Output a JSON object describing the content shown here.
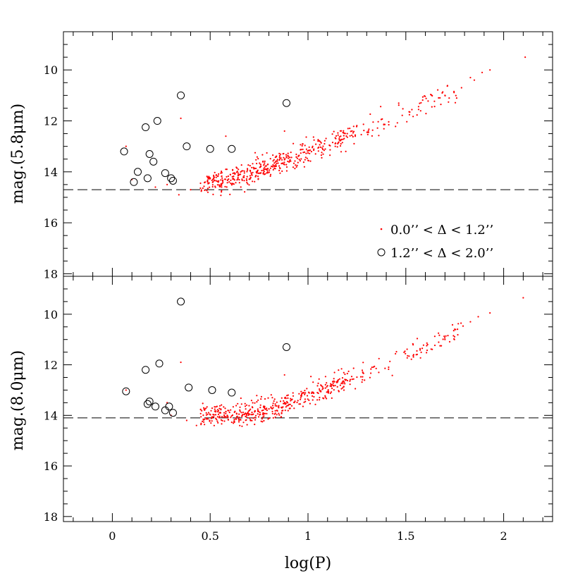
{
  "colors": {
    "axis": "#000000",
    "point": "#ff0000",
    "circle": "#000000",
    "threshold": "#000000"
  },
  "legend": {
    "placement": "lower-right of top panel",
    "entry1": "0.0’’ < Δ < 1.2’’",
    "entry2": "1.2’’ < Δ < 2.0’’"
  },
  "chart_data": [
    {
      "type": "scatter",
      "xlabel": "log(P)",
      "ylabel": "mag.(5.8μm)",
      "xlim": [
        -0.25,
        2.25
      ],
      "ylim": [
        18.1,
        8.5
      ],
      "y_inverted": true,
      "x_ticks": [
        "0",
        "0.5",
        "1",
        "1.5",
        "2"
      ],
      "y_ticks": [
        "10",
        "12",
        "14",
        "16",
        "18"
      ],
      "threshold": 14.7,
      "series": [
        {
          "name": "0.0’’ < Δ < 1.2’’",
          "marker": "dot",
          "trend": {
            "x": [
              0.45,
              0.6,
              0.8,
              1.0,
              1.2,
              1.4,
              1.6,
              1.8,
              2.1
            ],
            "y": [
              14.5,
              14.3,
              13.8,
              13.2,
              12.6,
              12.0,
              11.3,
              10.6,
              9.5
            ]
          },
          "extra_points": [
            {
              "x": 0.35,
              "y": 11.9
            },
            {
              "x": 0.58,
              "y": 12.6
            },
            {
              "x": 0.88,
              "y": 12.4
            },
            {
              "x": 1.7,
              "y": 11.0
            },
            {
              "x": 1.85,
              "y": 10.4
            },
            {
              "x": 1.83,
              "y": 10.3
            },
            {
              "x": 1.89,
              "y": 10.1
            },
            {
              "x": 1.93,
              "y": 10.0
            },
            {
              "x": 2.11,
              "y": 9.5
            },
            {
              "x": 0.07,
              "y": 13.0
            },
            {
              "x": 0.1,
              "y": 14.3
            },
            {
              "x": 0.22,
              "y": 14.6
            },
            {
              "x": 0.28,
              "y": 14.5
            },
            {
              "x": 0.34,
              "y": 14.9
            },
            {
              "x": 0.4,
              "y": 14.7
            }
          ]
        },
        {
          "name": "1.2’’ < Δ < 2.0’’",
          "marker": "circle",
          "points": [
            {
              "x": 0.06,
              "y": 13.2
            },
            {
              "x": 0.13,
              "y": 14.0
            },
            {
              "x": 0.11,
              "y": 14.4
            },
            {
              "x": 0.17,
              "y": 12.25
            },
            {
              "x": 0.19,
              "y": 13.3
            },
            {
              "x": 0.21,
              "y": 13.6
            },
            {
              "x": 0.23,
              "y": 12.0
            },
            {
              "x": 0.18,
              "y": 14.25
            },
            {
              "x": 0.27,
              "y": 14.05
            },
            {
              "x": 0.3,
              "y": 14.25
            },
            {
              "x": 0.31,
              "y": 14.35
            },
            {
              "x": 0.35,
              "y": 11.0
            },
            {
              "x": 0.38,
              "y": 13.0
            },
            {
              "x": 0.5,
              "y": 13.1
            },
            {
              "x": 0.61,
              "y": 13.1
            },
            {
              "x": 0.89,
              "y": 11.3
            }
          ]
        }
      ]
    },
    {
      "type": "scatter",
      "xlabel": "log(P)",
      "ylabel": "mag.(8.0μm)",
      "xlim": [
        -0.25,
        2.25
      ],
      "ylim": [
        18.2,
        8.5
      ],
      "y_inverted": true,
      "x_ticks": [
        "0",
        "0.5",
        "1",
        "1.5",
        "2"
      ],
      "y_ticks": [
        "10",
        "12",
        "14",
        "16",
        "18"
      ],
      "threshold": 14.1,
      "series": [
        {
          "name": "0.0’’ < Δ < 1.2’’",
          "marker": "dot",
          "trend": {
            "x": [
              0.45,
              0.6,
              0.8,
              1.0,
              1.2,
              1.4,
              1.6,
              1.8,
              2.1
            ],
            "y": [
              14.0,
              14.0,
              13.8,
              13.2,
              12.6,
              12.0,
              11.3,
              10.6,
              9.4
            ]
          },
          "extra_points": [
            {
              "x": 0.35,
              "y": 11.9
            },
            {
              "x": 0.88,
              "y": 12.4
            },
            {
              "x": 1.7,
              "y": 11.0
            },
            {
              "x": 1.83,
              "y": 10.3
            },
            {
              "x": 1.87,
              "y": 10.1
            },
            {
              "x": 1.93,
              "y": 9.95
            },
            {
              "x": 2.1,
              "y": 9.35
            },
            {
              "x": 0.07,
              "y": 13.0
            },
            {
              "x": 0.28,
              "y": 13.5
            },
            {
              "x": 0.3,
              "y": 14.0
            },
            {
              "x": 0.43,
              "y": 14.4
            },
            {
              "x": 0.38,
              "y": 14.2
            }
          ]
        },
        {
          "name": "1.2’’ < Δ < 2.0’’",
          "marker": "circle",
          "points": [
            {
              "x": 0.07,
              "y": 13.05
            },
            {
              "x": 0.17,
              "y": 12.2
            },
            {
              "x": 0.19,
              "y": 13.45
            },
            {
              "x": 0.18,
              "y": 13.55
            },
            {
              "x": 0.22,
              "y": 13.65
            },
            {
              "x": 0.24,
              "y": 11.95
            },
            {
              "x": 0.27,
              "y": 13.8
            },
            {
              "x": 0.29,
              "y": 13.65
            },
            {
              "x": 0.31,
              "y": 13.9
            },
            {
              "x": 0.35,
              "y": 9.5
            },
            {
              "x": 0.39,
              "y": 12.9
            },
            {
              "x": 0.51,
              "y": 13.0
            },
            {
              "x": 0.61,
              "y": 13.1
            },
            {
              "x": 0.89,
              "y": 11.3
            }
          ]
        }
      ]
    }
  ]
}
